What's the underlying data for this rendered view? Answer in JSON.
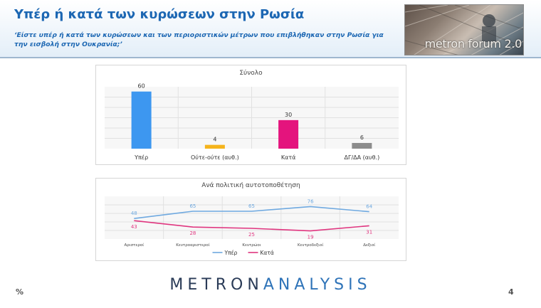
{
  "header": {
    "title": "Υπέρ ή κατά των κυρώσεων στην Ρωσία",
    "subtitle": "‘Είστε υπέρ ή κατά των κυρώσεων και των περιοριστικών μέτρων που επιβλήθηκαν στην Ρωσία για την εισβολή στην Ουκρανία;’",
    "brand_label": "metron forum 2.0"
  },
  "chart_data": [
    {
      "type": "bar",
      "title": "Σύνολο",
      "categories": [
        "Υπέρ",
        "Ούτε-ούτε (αυθ.)",
        "Κατά",
        "ΔΓ/ΔΑ (αυθ.)"
      ],
      "values": [
        60,
        4,
        30,
        6
      ],
      "colors": [
        "#3d97f0",
        "#f5b41c",
        "#e4147d",
        "#8c8c8c"
      ],
      "ylim": [
        0,
        65
      ],
      "grid": true
    },
    {
      "type": "line",
      "title": "Ανά πολιτική αυτοτοποθέτηση",
      "categories": [
        "Αριστεροί",
        "Κεντροαριστεροί",
        "Κεντρώοι",
        "Κεντροδεξιοί",
        "Δεξιοί"
      ],
      "series": [
        {
          "name": "Υπέρ",
          "values": [
            48,
            65,
            65,
            76,
            64
          ],
          "color": "#6fa9e0"
        },
        {
          "name": "Κατά",
          "values": [
            43,
            28,
            25,
            19,
            31
          ],
          "color": "#e0357f"
        }
      ],
      "ylim": [
        0,
        100
      ],
      "grid": true,
      "legend_position": "bottom"
    }
  ],
  "footer": {
    "unit": "%",
    "logo_part1": "METRON",
    "logo_part2": "ANALYSIS",
    "page_number": "4"
  }
}
